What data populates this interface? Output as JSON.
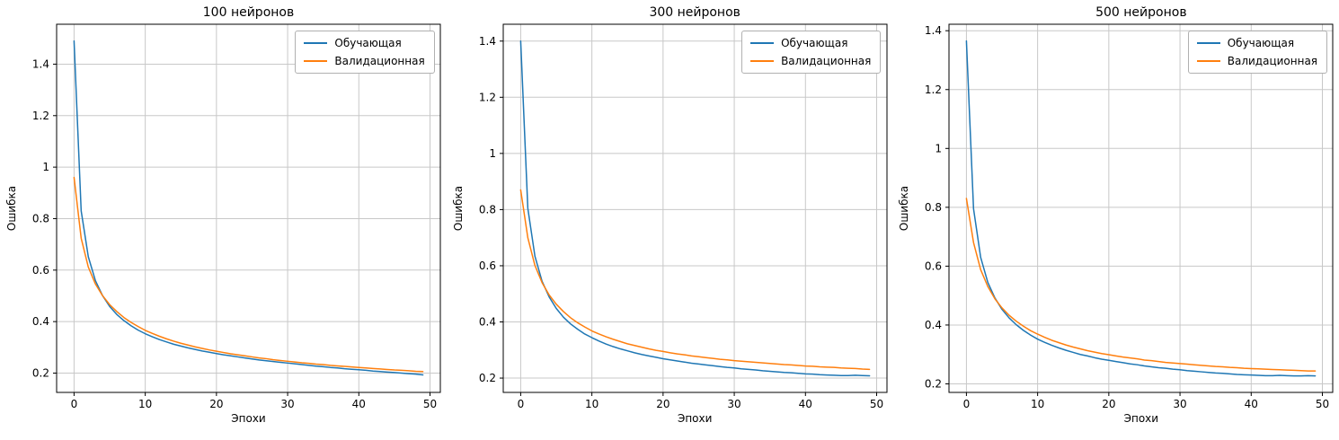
{
  "figure": {
    "background": "#ffffff",
    "grid_color": "#c8c8c8",
    "frame_color": "#000000"
  },
  "chart_data": [
    {
      "type": "line",
      "title": "100 нейронов",
      "xlabel": "Эпохи",
      "ylabel": "Ошибка",
      "xlim": [
        -2.45,
        51.45
      ],
      "ylim": [
        0.125,
        1.555
      ],
      "xticks": [
        0,
        10,
        20,
        30,
        40,
        50
      ],
      "yticks": [
        0.2,
        0.4,
        0.6,
        0.8,
        1.0,
        1.2,
        1.4
      ],
      "grid": true,
      "legend_position": "upper right",
      "x": [
        0,
        1,
        2,
        3,
        4,
        5,
        6,
        7,
        8,
        9,
        10,
        11,
        12,
        13,
        14,
        15,
        16,
        17,
        18,
        19,
        20,
        21,
        22,
        23,
        24,
        25,
        26,
        27,
        28,
        29,
        30,
        31,
        32,
        33,
        34,
        35,
        36,
        37,
        38,
        39,
        40,
        41,
        42,
        43,
        44,
        45,
        46,
        47,
        48,
        49
      ],
      "series": [
        {
          "name": "Обучающая",
          "color": "#1f77b4",
          "values": [
            1.49,
            0.83,
            0.652,
            0.559,
            0.501,
            0.459,
            0.428,
            0.404,
            0.384,
            0.367,
            0.353,
            0.341,
            0.33,
            0.321,
            0.312,
            0.305,
            0.298,
            0.292,
            0.286,
            0.281,
            0.276,
            0.271,
            0.267,
            0.263,
            0.259,
            0.255,
            0.251,
            0.248,
            0.245,
            0.242,
            0.239,
            0.236,
            0.233,
            0.23,
            0.227,
            0.225,
            0.222,
            0.22,
            0.217,
            0.215,
            0.213,
            0.211,
            0.208,
            0.206,
            0.204,
            0.202,
            0.2,
            0.198,
            0.196,
            0.193
          ]
        },
        {
          "name": "Валидационная",
          "color": "#ff7f0e",
          "values": [
            0.96,
            0.724,
            0.612,
            0.546,
            0.501,
            0.466,
            0.439,
            0.416,
            0.397,
            0.381,
            0.366,
            0.354,
            0.343,
            0.333,
            0.324,
            0.316,
            0.309,
            0.302,
            0.296,
            0.29,
            0.285,
            0.28,
            0.275,
            0.271,
            0.267,
            0.263,
            0.259,
            0.256,
            0.252,
            0.249,
            0.246,
            0.243,
            0.24,
            0.238,
            0.235,
            0.233,
            0.23,
            0.228,
            0.226,
            0.224,
            0.222,
            0.22,
            0.218,
            0.216,
            0.214,
            0.212,
            0.211,
            0.209,
            0.207,
            0.206
          ]
        }
      ]
    },
    {
      "type": "line",
      "title": "300 нейронов",
      "xlabel": "Эпохи",
      "ylabel": "Ошибка",
      "xlim": [
        -2.45,
        51.45
      ],
      "ylim": [
        0.149,
        1.46
      ],
      "xticks": [
        0,
        10,
        20,
        30,
        40,
        50
      ],
      "yticks": [
        0.2,
        0.4,
        0.6,
        0.8,
        1.0,
        1.2,
        1.4
      ],
      "grid": true,
      "legend_position": "upper right",
      "x": [
        0,
        1,
        2,
        3,
        4,
        5,
        6,
        7,
        8,
        9,
        10,
        11,
        12,
        13,
        14,
        15,
        16,
        17,
        18,
        19,
        20,
        21,
        22,
        23,
        24,
        25,
        26,
        27,
        28,
        29,
        30,
        31,
        32,
        33,
        34,
        35,
        36,
        37,
        38,
        39,
        40,
        41,
        42,
        43,
        44,
        45,
        46,
        47,
        48,
        49
      ],
      "series": [
        {
          "name": "Обучающая",
          "color": "#1f77b4",
          "values": [
            1.4,
            0.805,
            0.634,
            0.545,
            0.489,
            0.448,
            0.417,
            0.393,
            0.374,
            0.357,
            0.344,
            0.332,
            0.321,
            0.312,
            0.304,
            0.297,
            0.29,
            0.284,
            0.279,
            0.274,
            0.269,
            0.265,
            0.261,
            0.257,
            0.253,
            0.25,
            0.247,
            0.244,
            0.241,
            0.238,
            0.236,
            0.233,
            0.231,
            0.229,
            0.226,
            0.224,
            0.222,
            0.22,
            0.219,
            0.217,
            0.215,
            0.214,
            0.212,
            0.211,
            0.21,
            0.209,
            0.209,
            0.21,
            0.209,
            0.208
          ]
        },
        {
          "name": "Валидационная",
          "color": "#ff7f0e",
          "values": [
            0.87,
            0.7,
            0.601,
            0.54,
            0.496,
            0.463,
            0.437,
            0.415,
            0.397,
            0.382,
            0.368,
            0.357,
            0.347,
            0.338,
            0.33,
            0.322,
            0.316,
            0.31,
            0.304,
            0.299,
            0.295,
            0.29,
            0.286,
            0.283,
            0.279,
            0.276,
            0.273,
            0.27,
            0.267,
            0.265,
            0.262,
            0.26,
            0.258,
            0.256,
            0.254,
            0.252,
            0.25,
            0.248,
            0.247,
            0.245,
            0.243,
            0.242,
            0.24,
            0.239,
            0.238,
            0.236,
            0.235,
            0.234,
            0.232,
            0.231
          ]
        }
      ]
    },
    {
      "type": "line",
      "title": "500 нейронов",
      "xlabel": "Эпохи",
      "ylabel": "Ошибка",
      "xlim": [
        -2.45,
        51.45
      ],
      "ylim": [
        0.171,
        1.422
      ],
      "xticks": [
        0,
        10,
        20,
        30,
        40,
        50
      ],
      "yticks": [
        0.2,
        0.4,
        0.6,
        0.8,
        1.0,
        1.2,
        1.4
      ],
      "grid": true,
      "legend_position": "upper right",
      "x": [
        0,
        1,
        2,
        3,
        4,
        5,
        6,
        7,
        8,
        9,
        10,
        11,
        12,
        13,
        14,
        15,
        16,
        17,
        18,
        19,
        20,
        21,
        22,
        23,
        24,
        25,
        26,
        27,
        28,
        29,
        30,
        31,
        32,
        33,
        34,
        35,
        36,
        37,
        38,
        39,
        40,
        41,
        42,
        43,
        44,
        45,
        46,
        47,
        48,
        49
      ],
      "series": [
        {
          "name": "Обучающая",
          "color": "#1f77b4",
          "values": [
            1.365,
            0.795,
            0.63,
            0.545,
            0.492,
            0.453,
            0.424,
            0.401,
            0.382,
            0.366,
            0.352,
            0.341,
            0.331,
            0.322,
            0.314,
            0.307,
            0.3,
            0.295,
            0.289,
            0.284,
            0.28,
            0.276,
            0.272,
            0.268,
            0.265,
            0.261,
            0.258,
            0.255,
            0.253,
            0.25,
            0.248,
            0.245,
            0.243,
            0.241,
            0.239,
            0.237,
            0.236,
            0.234,
            0.232,
            0.231,
            0.23,
            0.229,
            0.228,
            0.228,
            0.229,
            0.228,
            0.227,
            0.227,
            0.228,
            0.227
          ]
        },
        {
          "name": "Валидационная",
          "color": "#ff7f0e",
          "values": [
            0.83,
            0.68,
            0.588,
            0.531,
            0.489,
            0.458,
            0.433,
            0.413,
            0.396,
            0.381,
            0.369,
            0.358,
            0.348,
            0.34,
            0.332,
            0.325,
            0.319,
            0.313,
            0.308,
            0.303,
            0.299,
            0.295,
            0.291,
            0.288,
            0.285,
            0.281,
            0.279,
            0.276,
            0.273,
            0.271,
            0.269,
            0.267,
            0.265,
            0.263,
            0.261,
            0.259,
            0.258,
            0.256,
            0.255,
            0.253,
            0.252,
            0.251,
            0.25,
            0.249,
            0.248,
            0.247,
            0.246,
            0.245,
            0.244,
            0.244
          ]
        }
      ]
    }
  ]
}
